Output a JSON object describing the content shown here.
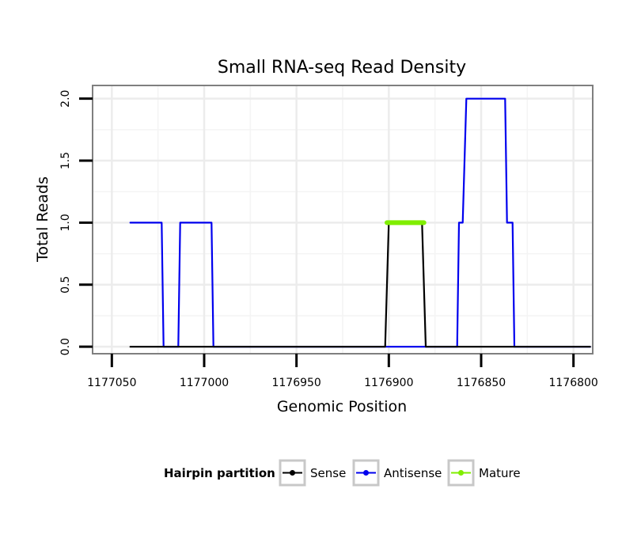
{
  "chart_data": {
    "type": "line",
    "title": "Small RNA-seq Read Density",
    "xlabel": "Genomic Position",
    "ylabel": "Total Reads",
    "xlim": [
      1177060,
      1176790
    ],
    "ylim": [
      -0.05,
      2.1
    ],
    "x_reversed": true,
    "grid": true,
    "x_ticks": [
      1177050,
      1177000,
      1176950,
      1176900,
      1176850,
      1176800
    ],
    "x_tick_labels": [
      "1177050",
      "1177000",
      "1176950",
      "1176900",
      "1176850",
      "1176800"
    ],
    "y_ticks": [
      0,
      0.5,
      1,
      1.5,
      2
    ],
    "y_tick_labels": [
      "0.0",
      "0.5",
      "1.0",
      "1.5",
      "2.0"
    ],
    "legend": {
      "title": "Hairpin partition",
      "position": "bottom",
      "entries": [
        "Sense",
        "Antisense",
        "Mature"
      ]
    },
    "series": [
      {
        "name": "Antisense",
        "color": "#0000ee",
        "x": [
          1177040,
          1177023,
          1177022,
          1177014,
          1177013,
          1176996,
          1176995,
          1176901,
          1176880,
          1176863,
          1176862,
          1176860,
          1176858,
          1176837,
          1176836,
          1176833,
          1176832,
          1176791
        ],
        "y": [
          1,
          1,
          0,
          0,
          1,
          1,
          0,
          0,
          0,
          0,
          1,
          1,
          2,
          2,
          1,
          1,
          0,
          0
        ]
      },
      {
        "name": "Sense",
        "color": "#000000",
        "x": [
          1177040,
          1176902,
          1176900,
          1176882,
          1176880,
          1176791
        ],
        "y": [
          0,
          0,
          1,
          1,
          0,
          0
        ]
      },
      {
        "name": "Mature",
        "color": "#80ee00",
        "x": [
          1176901,
          1176881
        ],
        "y": [
          1,
          1
        ]
      }
    ]
  }
}
